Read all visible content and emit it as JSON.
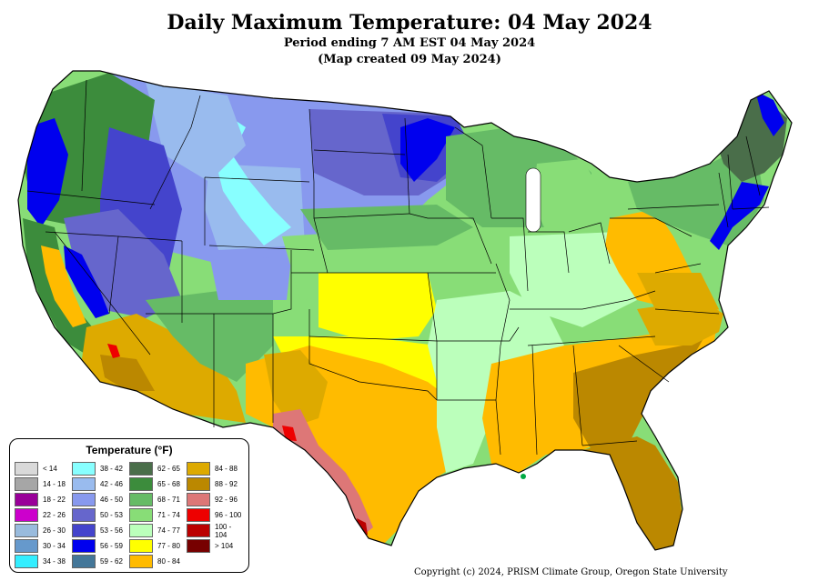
{
  "title": "Daily Maximum Temperature: 04 May 2024",
  "subtitle1": "Period ending 7 AM EST 04 May 2024",
  "subtitle2": "(Map created 09 May 2024)",
  "legend": {
    "title": "Temperature (°F)",
    "items": [
      {
        "label": "< 14",
        "color": "#d9d9d9"
      },
      {
        "label": "14 - 18",
        "color": "#a6a6a6"
      },
      {
        "label": "18 - 22",
        "color": "#990099"
      },
      {
        "label": "22 - 26",
        "color": "#cc00cc"
      },
      {
        "label": "26 - 30",
        "color": "#99bbdd"
      },
      {
        "label": "30 - 34",
        "color": "#6699cc"
      },
      {
        "label": "34 - 38",
        "color": "#33eeff"
      },
      {
        "label": "38 - 42",
        "color": "#88ffff"
      },
      {
        "label": "42 - 46",
        "color": "#99bbee"
      },
      {
        "label": "46 - 50",
        "color": "#8899ee"
      },
      {
        "label": "50 - 53",
        "color": "#6666cc"
      },
      {
        "label": "53 - 56",
        "color": "#4444cc"
      },
      {
        "label": "56 - 59",
        "color": "#0000ee"
      },
      {
        "label": "59 - 62",
        "color": "#447799"
      },
      {
        "label": "62 - 65",
        "color": "#4a6e4a"
      },
      {
        "label": "65 - 68",
        "color": "#3c8c3c"
      },
      {
        "label": "68 - 71",
        "color": "#66bb66"
      },
      {
        "label": "71 - 74",
        "color": "#88dd77"
      },
      {
        "label": "74 - 77",
        "color": "#bbffbb"
      },
      {
        "label": "77 - 80",
        "color": "#ffff00"
      },
      {
        "label": "80 - 84",
        "color": "#ffbb00"
      },
      {
        "label": "84 - 88",
        "color": "#ddaa00"
      },
      {
        "label": "88 - 92",
        "color": "#bb8800"
      },
      {
        "label": "92 - 96",
        "color": "#dd7777"
      },
      {
        "label": "96 - 100",
        "color": "#ee0000"
      },
      {
        "label": "100 - 104",
        "color": "#bb0000"
      },
      {
        "label": "> 104",
        "color": "#770000"
      }
    ]
  },
  "copyright": "Copyright (c) 2024, PRISM Climate Group, Oregon State University"
}
